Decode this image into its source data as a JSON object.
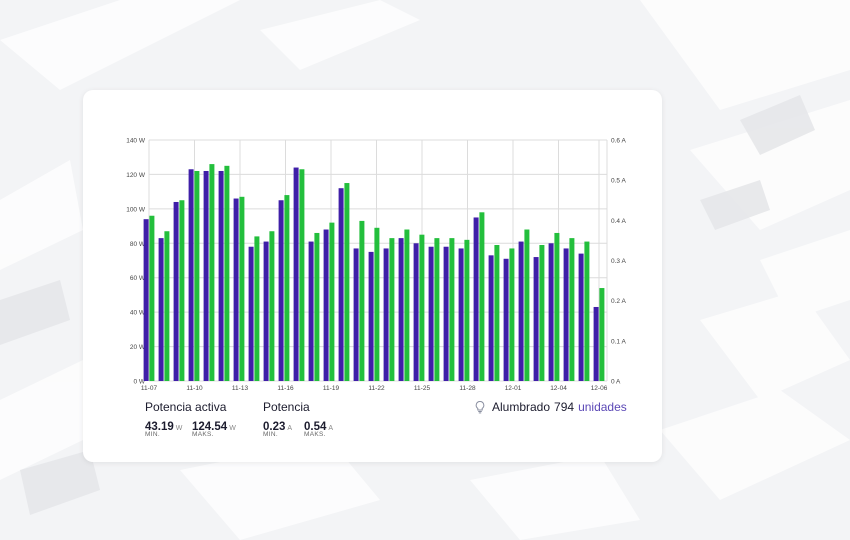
{
  "colors": {
    "purple": "#3f1fa8",
    "green": "#23bf3c",
    "grid": "#dcdcdc",
    "axis_text": "#444444"
  },
  "stats": {
    "active_power": {
      "title": "Potencia activa",
      "min_value": "43.19",
      "min_unit": "W",
      "min_label": "MIN.",
      "max_value": "124.54",
      "max_unit": "W",
      "max_label": "MAKS."
    },
    "current": {
      "title": "Potencia",
      "min_value": "0.23",
      "min_unit": "A",
      "min_label": "MIN.",
      "max_value": "0.54",
      "max_unit": "A",
      "max_label": "MAKS."
    }
  },
  "lighting": {
    "icon": "lightbulb-icon",
    "label": "Alumbrado",
    "count": "794",
    "units": "unidades"
  },
  "chart_data": {
    "type": "bar",
    "x_tick_labels": [
      "11-07",
      "11-10",
      "11-13",
      "11-16",
      "11-19",
      "11-22",
      "11-25",
      "11-28",
      "12-01",
      "12-04",
      "12-06"
    ],
    "y_left": {
      "unit": "W",
      "ylim": [
        0,
        140
      ],
      "ticks": [
        "0 W",
        "20 W",
        "40 W",
        "60 W",
        "80 W",
        "100 W",
        "120 W",
        "140 W"
      ]
    },
    "y_right": {
      "unit": "A",
      "ylim": [
        0,
        0.6
      ],
      "ticks": [
        "0 A",
        "0.1 A",
        "0.2 A",
        "0.3 A",
        "0.4 A",
        "0.5 A",
        "0.6 A"
      ]
    },
    "grid": true,
    "series": [
      {
        "color": "#3f1fa8",
        "axis": "left",
        "values": [
          94,
          83,
          104,
          123,
          122,
          122,
          106,
          78,
          81,
          105,
          124,
          81,
          88,
          112,
          77,
          75,
          77,
          83,
          80,
          78,
          78,
          77,
          95,
          73,
          71,
          81,
          72,
          80,
          77,
          74,
          43
        ]
      },
      {
        "color": "#23bf3c",
        "axis": "left",
        "values": [
          96,
          87,
          105,
          122,
          126,
          125,
          107,
          84,
          87,
          108,
          123,
          86,
          92,
          115,
          93,
          89,
          83,
          88,
          85,
          83,
          83,
          82,
          98,
          79,
          77,
          88,
          79,
          86,
          83,
          81,
          54
        ]
      }
    ]
  }
}
